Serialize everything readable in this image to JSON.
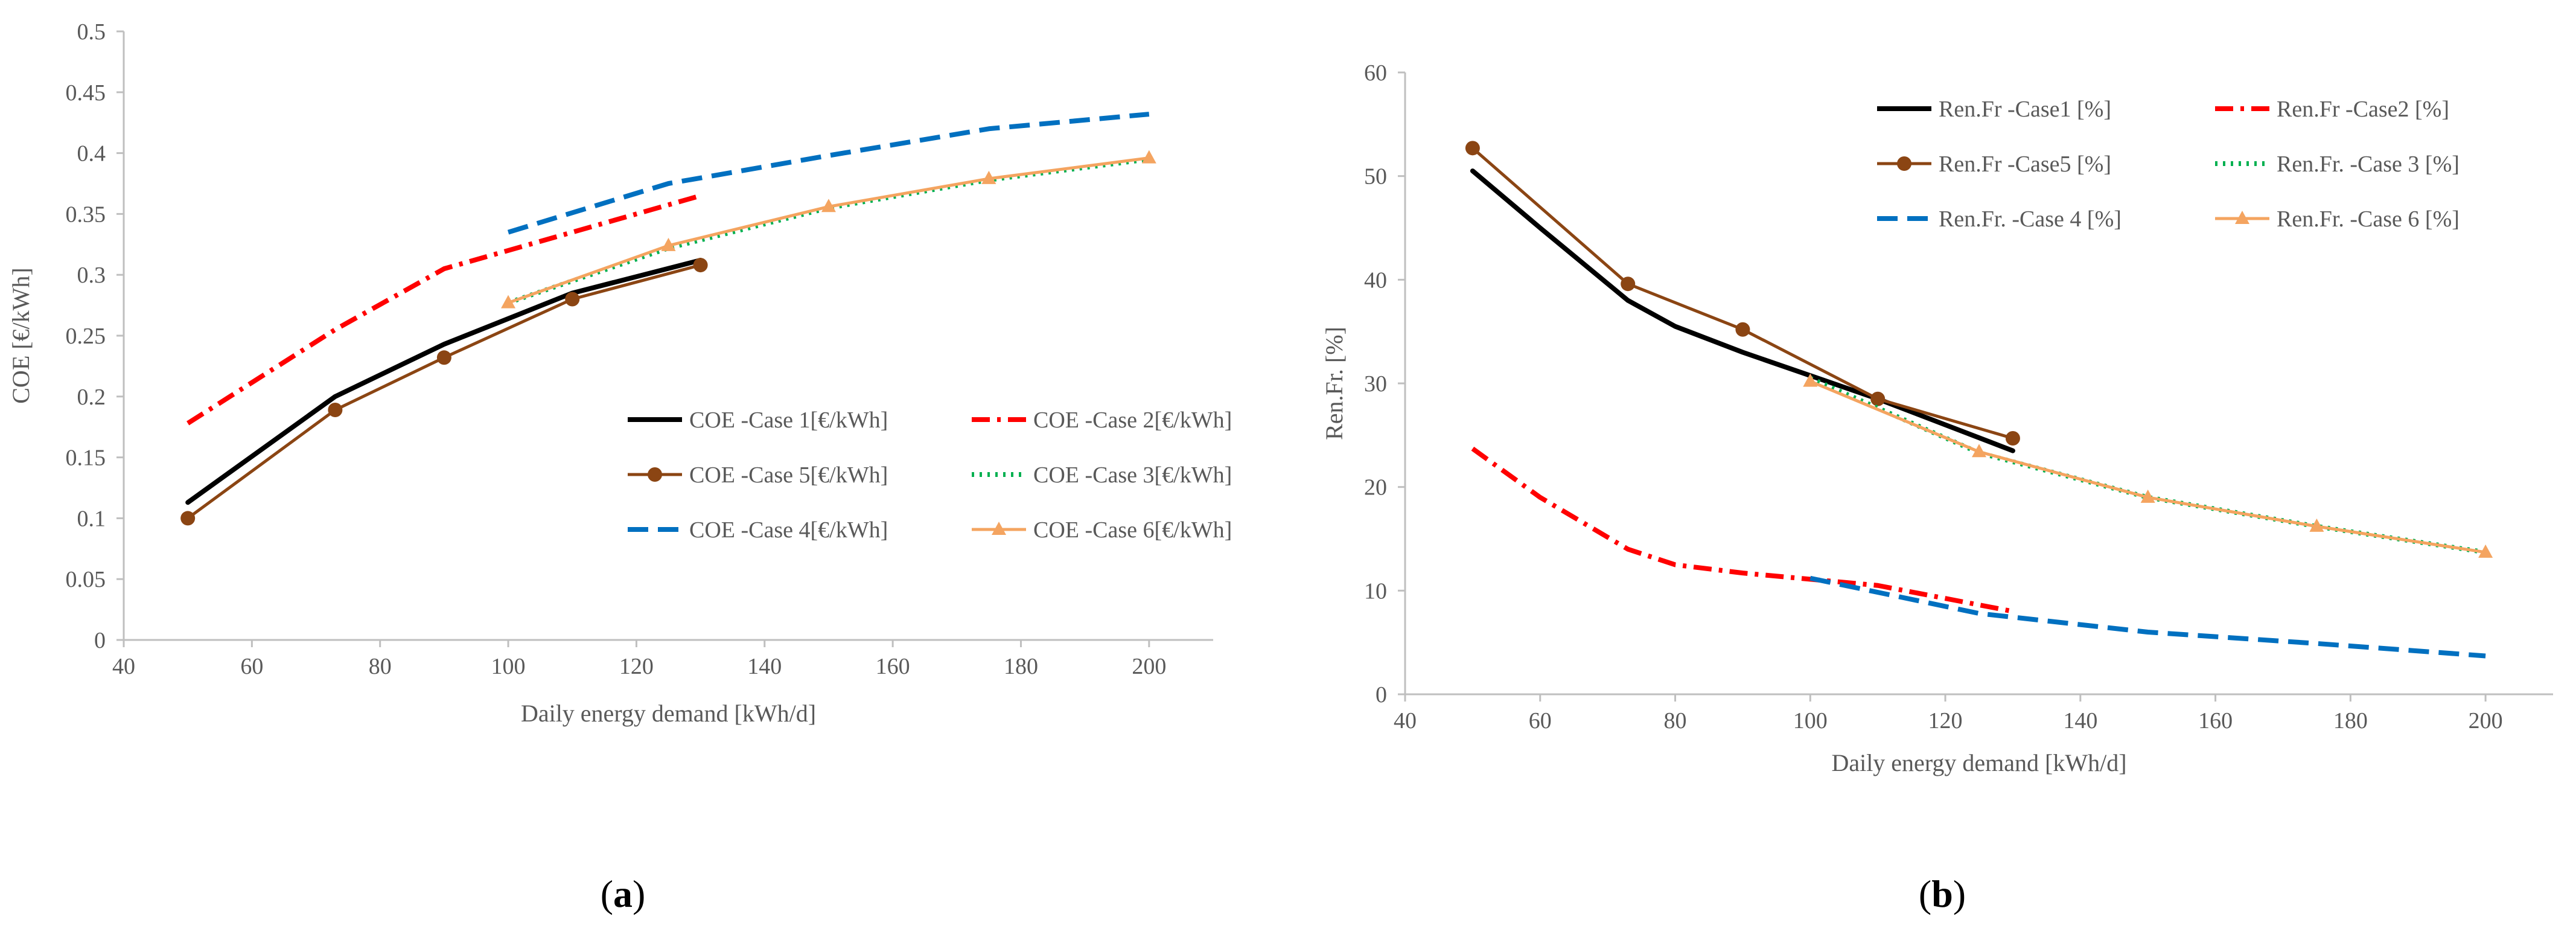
{
  "panels": [
    {
      "label_open": "(",
      "label_letter": "a",
      "label_close": ")"
    },
    {
      "label_open": "(",
      "label_letter": "b",
      "label_close": ")"
    }
  ],
  "chart_data": [
    {
      "type": "line",
      "xlabel": "Daily energy demand [kWh/d]",
      "ylabel": "COE [€/kWh]",
      "xlim": [
        40,
        210
      ],
      "ylim": [
        0,
        0.5
      ],
      "xticks": [
        40,
        60,
        80,
        100,
        120,
        140,
        160,
        180,
        200
      ],
      "yticks": [
        0,
        0.05,
        0.1,
        0.15,
        0.2,
        0.25,
        0.3,
        0.35,
        0.4,
        0.45,
        0.5
      ],
      "ytick_labels": [
        "0",
        "0.05",
        "0.1",
        "0.15",
        "0.2",
        "0.25",
        "0.3",
        "0.35",
        "0.4",
        "0.45",
        "0.5"
      ],
      "grid": false,
      "legend_position": "bottom-right",
      "series": [
        {
          "name": "COE -Case 1[€/kWh]",
          "color": "#000000",
          "style": "solid",
          "marker": "none",
          "x": [
            50,
            73,
            90,
            110,
            130
          ],
          "y": [
            0.113,
            0.2,
            0.243,
            0.285,
            0.312
          ]
        },
        {
          "name": "COE -Case 2[€/kWh]",
          "color": "#ff0000",
          "style": "dashdot",
          "marker": "none",
          "x": [
            50,
            73,
            90,
            110,
            130
          ],
          "y": [
            0.178,
            0.255,
            0.305,
            0.335,
            0.365
          ]
        },
        {
          "name": "COE -Case 5[€/kWh]",
          "color": "#8b4513",
          "style": "solid",
          "marker": "circle",
          "x": [
            50,
            73,
            90,
            110,
            130
          ],
          "y": [
            0.1,
            0.189,
            0.232,
            0.28,
            0.308
          ]
        },
        {
          "name": "COE -Case 3[€/kWh]",
          "color": "#00b050",
          "style": "dotted",
          "marker": "none",
          "x": [
            100,
            125,
            150,
            175,
            200
          ],
          "y": [
            0.277,
            0.322,
            0.355,
            0.378,
            0.395
          ]
        },
        {
          "name": "COE -Case 4[€/kWh]",
          "color": "#0070c0",
          "style": "dashed",
          "marker": "none",
          "x": [
            100,
            125,
            150,
            175,
            200
          ],
          "y": [
            0.335,
            0.375,
            0.398,
            0.42,
            0.432
          ]
        },
        {
          "name": "COE -Case 6[€/kWh]",
          "color": "#f4a460",
          "style": "solid",
          "marker": "triangle",
          "x": [
            100,
            125,
            150,
            175,
            200
          ],
          "y": [
            0.277,
            0.324,
            0.356,
            0.379,
            0.396
          ]
        }
      ]
    },
    {
      "type": "line",
      "xlabel": "Daily energy demand [kWh/d]",
      "ylabel": "Ren.Fr. [%]",
      "xlim": [
        40,
        210
      ],
      "ylim": [
        0,
        60
      ],
      "xticks": [
        40,
        60,
        80,
        100,
        120,
        140,
        160,
        180,
        200
      ],
      "yticks": [
        0,
        10,
        20,
        30,
        40,
        50,
        60
      ],
      "ytick_labels": [
        "0",
        "10",
        "20",
        "30",
        "40",
        "50",
        "60"
      ],
      "grid": false,
      "legend_position": "top-right",
      "series": [
        {
          "name": "Ren.Fr -Case1 [%]",
          "color": "#000000",
          "style": "solid",
          "marker": "none",
          "x": [
            50,
            60,
            73,
            80,
            90,
            110,
            130
          ],
          "y": [
            50.5,
            45,
            38,
            35.5,
            33,
            28.5,
            23.5
          ]
        },
        {
          "name": "Ren.Fr -Case2 [%]",
          "color": "#ff0000",
          "style": "dashdot",
          "marker": "none",
          "x": [
            50,
            60,
            73,
            80,
            90,
            110,
            130
          ],
          "y": [
            23.7,
            19,
            14,
            12.5,
            11.7,
            10.5,
            8
          ]
        },
        {
          "name": "Ren.Fr -Case5 [%]",
          "color": "#8b4513",
          "style": "solid",
          "marker": "circle",
          "x": [
            50,
            73,
            90,
            110,
            130
          ],
          "y": [
            52.7,
            39.6,
            35.2,
            28.5,
            24.7
          ]
        },
        {
          "name": "Ren.Fr. -Case 3 [%]",
          "color": "#00b050",
          "style": "dotted",
          "marker": "none",
          "x": [
            100,
            125,
            150,
            175,
            200
          ],
          "y": [
            30.5,
            23.3,
            19,
            16.2,
            13.7
          ]
        },
        {
          "name": "Ren.Fr. -Case 4 [%]",
          "color": "#0070c0",
          "style": "dashed",
          "marker": "none",
          "x": [
            100,
            125,
            150,
            175,
            200
          ],
          "y": [
            11.2,
            7.8,
            6,
            4.9,
            3.7
          ]
        },
        {
          "name": "Ren.Fr. -Case 6 [%]",
          "color": "#f4a460",
          "style": "solid",
          "marker": "triangle",
          "x": [
            100,
            125,
            150,
            175,
            200
          ],
          "y": [
            30.2,
            23.4,
            19,
            16.2,
            13.7
          ]
        }
      ]
    }
  ]
}
